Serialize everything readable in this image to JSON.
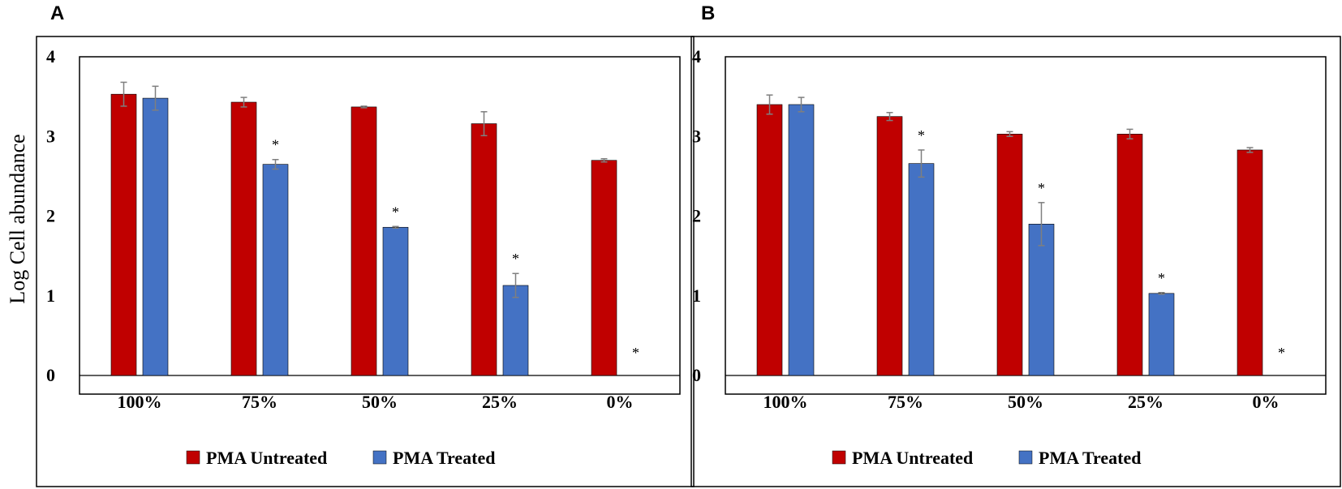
{
  "ylabel": "Log Cell abundance",
  "colors": {
    "untreated": "#C00000",
    "treated": "#4472C4",
    "errorbar": "#7F7F7F"
  },
  "legend": {
    "untreated_label": "PMA Untreated",
    "treated_label": "PMA Treated"
  },
  "chart_data": [
    {
      "panel_label": "A",
      "type": "bar",
      "categories": [
        "100%",
        "75%",
        "50%",
        "25%",
        "0%"
      ],
      "ylim": [
        0,
        4
      ],
      "yticks": [
        "0",
        "1",
        "2",
        "3",
        "4"
      ],
      "xlabel": "",
      "ylabel": "Log Cell abundance",
      "series": [
        {
          "name": "PMA Untreated",
          "values": [
            3.53,
            3.43,
            3.37,
            3.16,
            2.7
          ],
          "errors": [
            0.15,
            0.06,
            0.01,
            0.15,
            0.02
          ],
          "significant": [
            false,
            false,
            false,
            false,
            false
          ]
        },
        {
          "name": "PMA Treated",
          "values": [
            3.48,
            2.65,
            1.86,
            1.13,
            0
          ],
          "errors": [
            0.15,
            0.06,
            0.01,
            0.15,
            0
          ],
          "significant": [
            false,
            true,
            true,
            true,
            true
          ]
        }
      ],
      "significance_marker": "*"
    },
    {
      "panel_label": "B",
      "type": "bar",
      "categories": [
        "100%",
        "75%",
        "50%",
        "25%",
        "0%"
      ],
      "ylim": [
        0,
        4
      ],
      "yticks": [
        "0",
        "1",
        "2",
        "3",
        "4"
      ],
      "xlabel": "",
      "ylabel": "",
      "series": [
        {
          "name": "PMA Untreated",
          "values": [
            3.4,
            3.25,
            3.03,
            3.03,
            2.83
          ],
          "errors": [
            0.12,
            0.05,
            0.03,
            0.06,
            0.03
          ],
          "significant": [
            false,
            false,
            false,
            false,
            false
          ]
        },
        {
          "name": "PMA Treated",
          "values": [
            3.4,
            2.66,
            1.9,
            1.03,
            0
          ],
          "errors": [
            0.09,
            0.17,
            0.27,
            0.01,
            0
          ],
          "significant": [
            false,
            true,
            true,
            true,
            true
          ]
        }
      ],
      "significance_marker": "*"
    }
  ]
}
